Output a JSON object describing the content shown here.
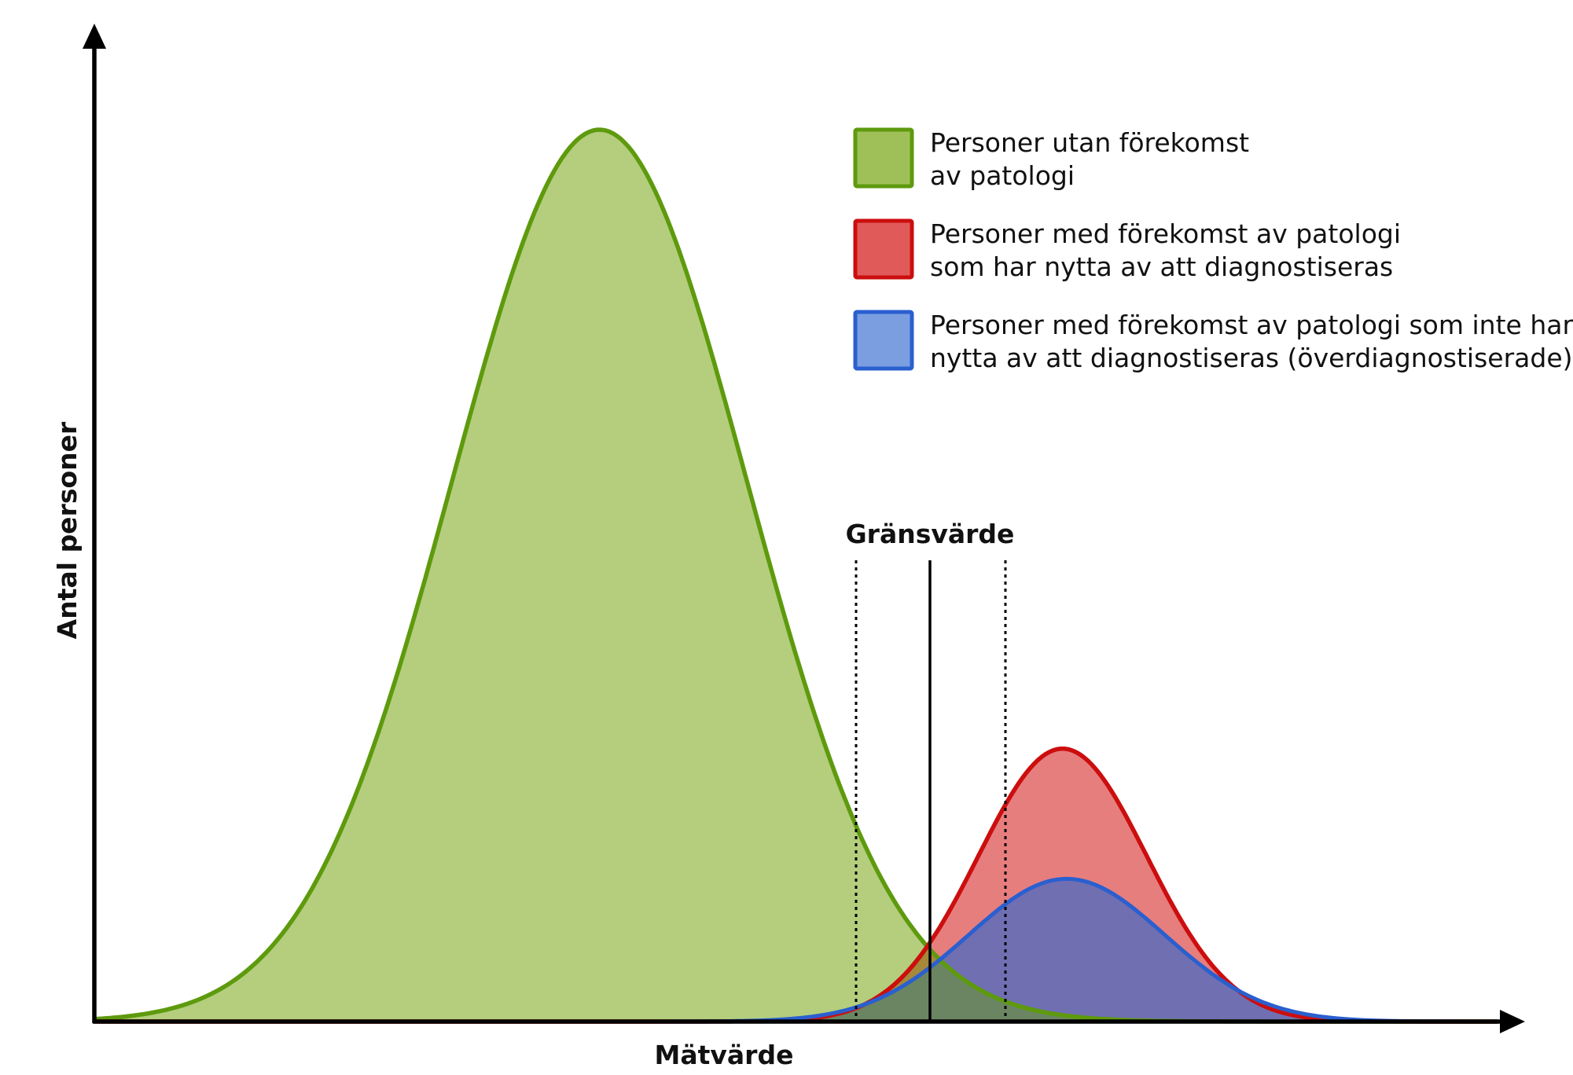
{
  "chart_data": {
    "type": "area",
    "xlabel": "Mätvärde",
    "ylabel": "Antal personer",
    "threshold": {
      "label": "Gränsvärde"
    },
    "series": [
      {
        "name_lines": [
          "Personer utan förekomst",
          "av patologi"
        ],
        "fill": "#9fc059",
        "stroke": "#5e9a0d",
        "peak": 1.0,
        "mean": 0.36,
        "sd": 0.105
      },
      {
        "name_lines": [
          "Personer med förekomst av patologi",
          "som har nytta av att diagnostiseras"
        ],
        "fill": "#e05a5a",
        "stroke": "#cc0e0e",
        "peak": 0.306,
        "mean": 0.69,
        "sd": 0.06
      },
      {
        "name_lines": [
          "Personer med förekomst av patologi som inte har",
          "nytta av att diagnostiseras (överdiagnostiserade)"
        ],
        "fill": "#7a9ee0",
        "stroke": "#2a5fcf",
        "peak": 0.16,
        "mean": 0.693,
        "sd": 0.07
      }
    ]
  }
}
